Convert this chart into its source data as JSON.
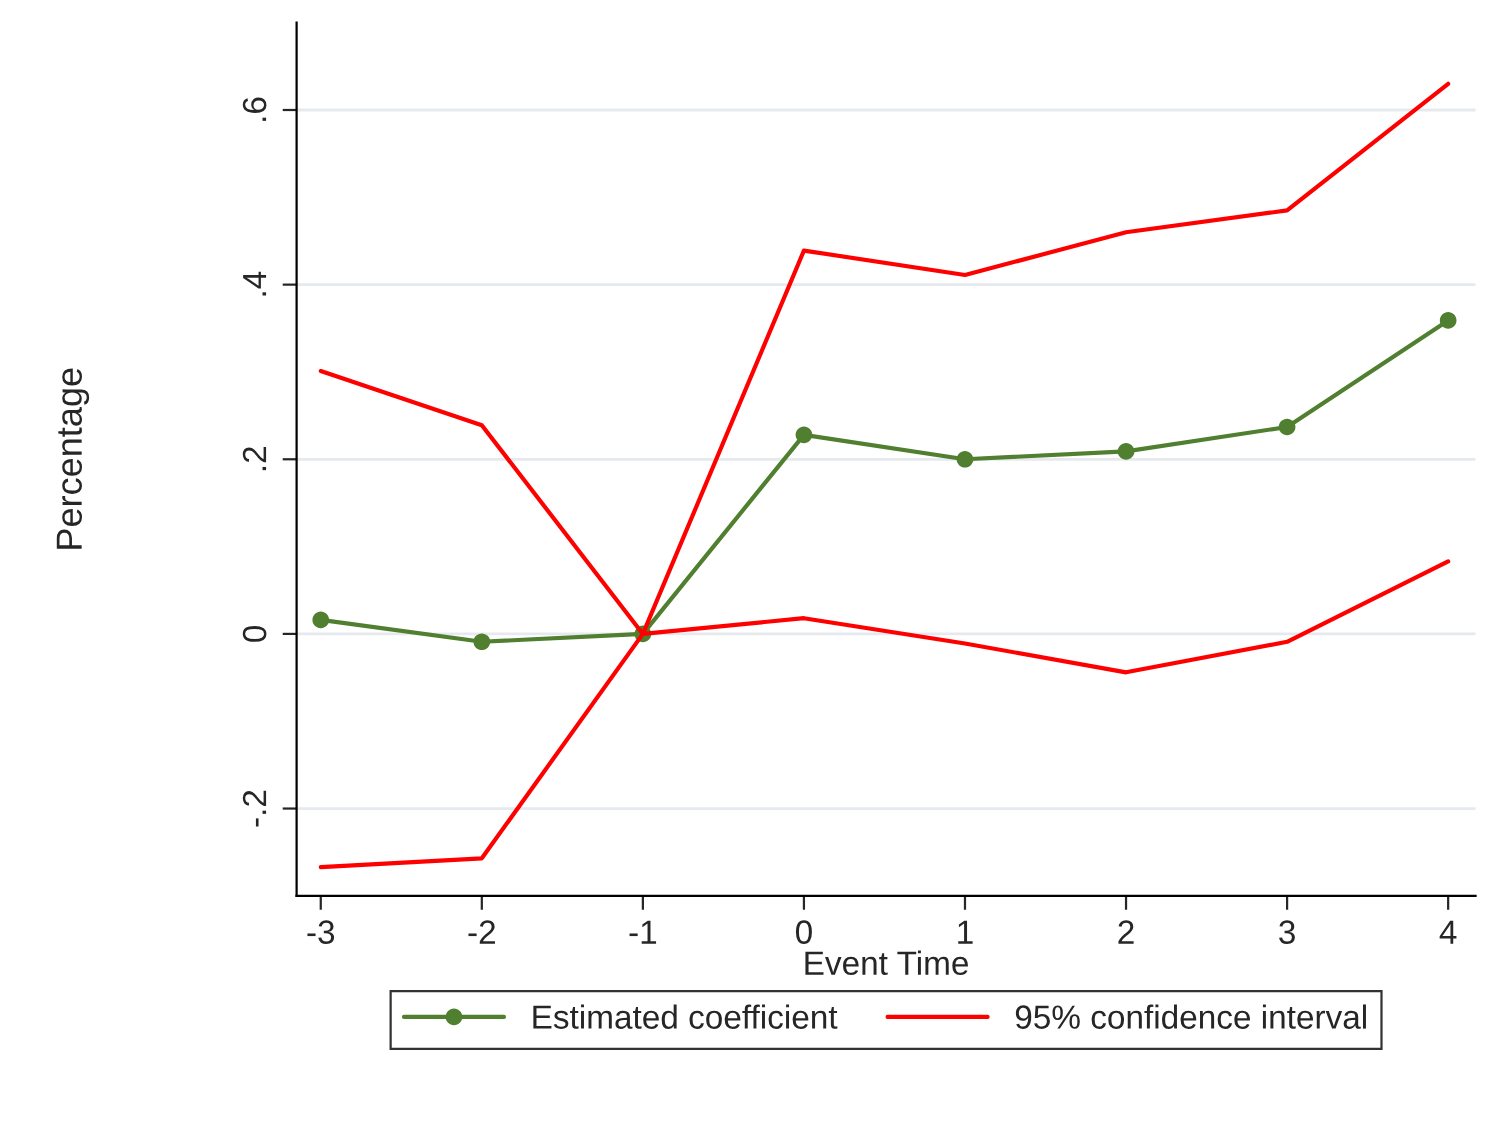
{
  "chart_data": {
    "type": "line",
    "xlabel": "Event Time",
    "ylabel": "Percentage",
    "x": [
      -3,
      -2,
      -1,
      0,
      1,
      2,
      3,
      4
    ],
    "series": [
      {
        "name": "Estimated coefficient",
        "color": "#4f7f2f",
        "marker": "circle",
        "values": [
          0.016,
          -0.009,
          0,
          0.228,
          0.2,
          0.209,
          0.237,
          0.359
        ]
      },
      {
        "name": "95% confidence interval",
        "color": "#ff0000",
        "marker": "none",
        "values": [
          0.301,
          0.239,
          0,
          0.439,
          0.411,
          0.46,
          0.485,
          0.63
        ]
      },
      {
        "color": "#ff0000",
        "marker": "none",
        "values": [
          -0.267,
          -0.257,
          0,
          0.018,
          -0.011,
          -0.044,
          -0.009,
          0.083
        ]
      }
    ],
    "xlim": [
      -3.15,
      4.17
    ],
    "ylim": [
      -0.3,
      0.7
    ],
    "xticks": [
      -3,
      -2,
      -1,
      0,
      1,
      2,
      3,
      4
    ],
    "yticks": [
      {
        "value": -0.2,
        "label": "-.2"
      },
      0,
      {
        "value": 0.2,
        "label": ".2"
      },
      {
        "value": 0.4,
        "label": ".4"
      },
      {
        "value": 0.6,
        "label": ".6"
      }
    ],
    "grid": "y",
    "legend": "bottom",
    "line_style": "solid"
  }
}
